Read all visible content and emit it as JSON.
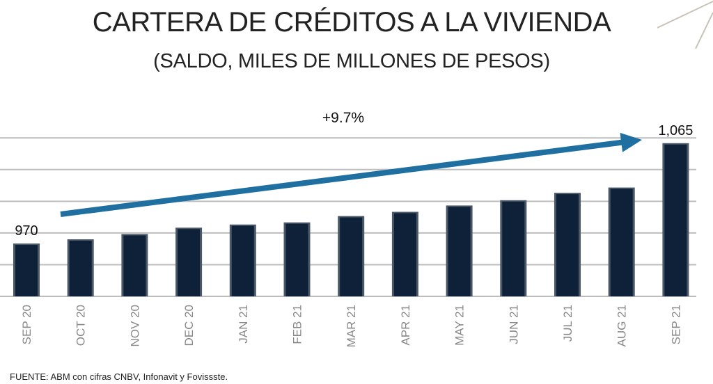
{
  "title": "CARTERA DE CRÉDITOS A LA VIVIENDA",
  "subtitle": "(SALDO, MILES DE MILLONES DE PESOS)",
  "source": "FUENTE: ABM con cifras CNBV, Infonavit y Fovissste.",
  "growth_label": "+9.7%",
  "colors": {
    "bar": "#0e2138",
    "bar_edge": "#4a5868",
    "arrow": "#1f6fa0",
    "grid": "#bdbdbd",
    "tick": "#888888"
  },
  "chart_data": {
    "type": "bar",
    "title": "CARTERA DE CRÉDITOS A LA VIVIENDA",
    "subtitle": "(SALDO, MILES DE MILLONES DE PESOS)",
    "categories": [
      "SEP 20",
      "OCT 20",
      "NOV 20",
      "DEC 20",
      "JAN 21",
      "FEB 21",
      "MAR 21",
      "APR 21",
      "MAY 21",
      "JUN 21",
      "JUL 21",
      "AUG 21",
      "SEP 21"
    ],
    "values": [
      970,
      974,
      979,
      985,
      988,
      990,
      996,
      1000,
      1006,
      1011,
      1018,
      1023,
      1065
    ],
    "data_labels": [
      {
        "category": "SEP 20",
        "text": "970"
      },
      {
        "category": "SEP 21",
        "text": "1,065"
      }
    ],
    "annotation": {
      "text": "+9.7%",
      "type": "trend-arrow",
      "from": "OCT 20",
      "to": "SEP 21"
    },
    "ylim": [
      920,
      1080
    ],
    "gridlines": [
      920,
      950,
      980,
      1010,
      1040,
      1070
    ],
    "grid": true,
    "legend": "none",
    "xlabel": "",
    "ylabel": ""
  }
}
